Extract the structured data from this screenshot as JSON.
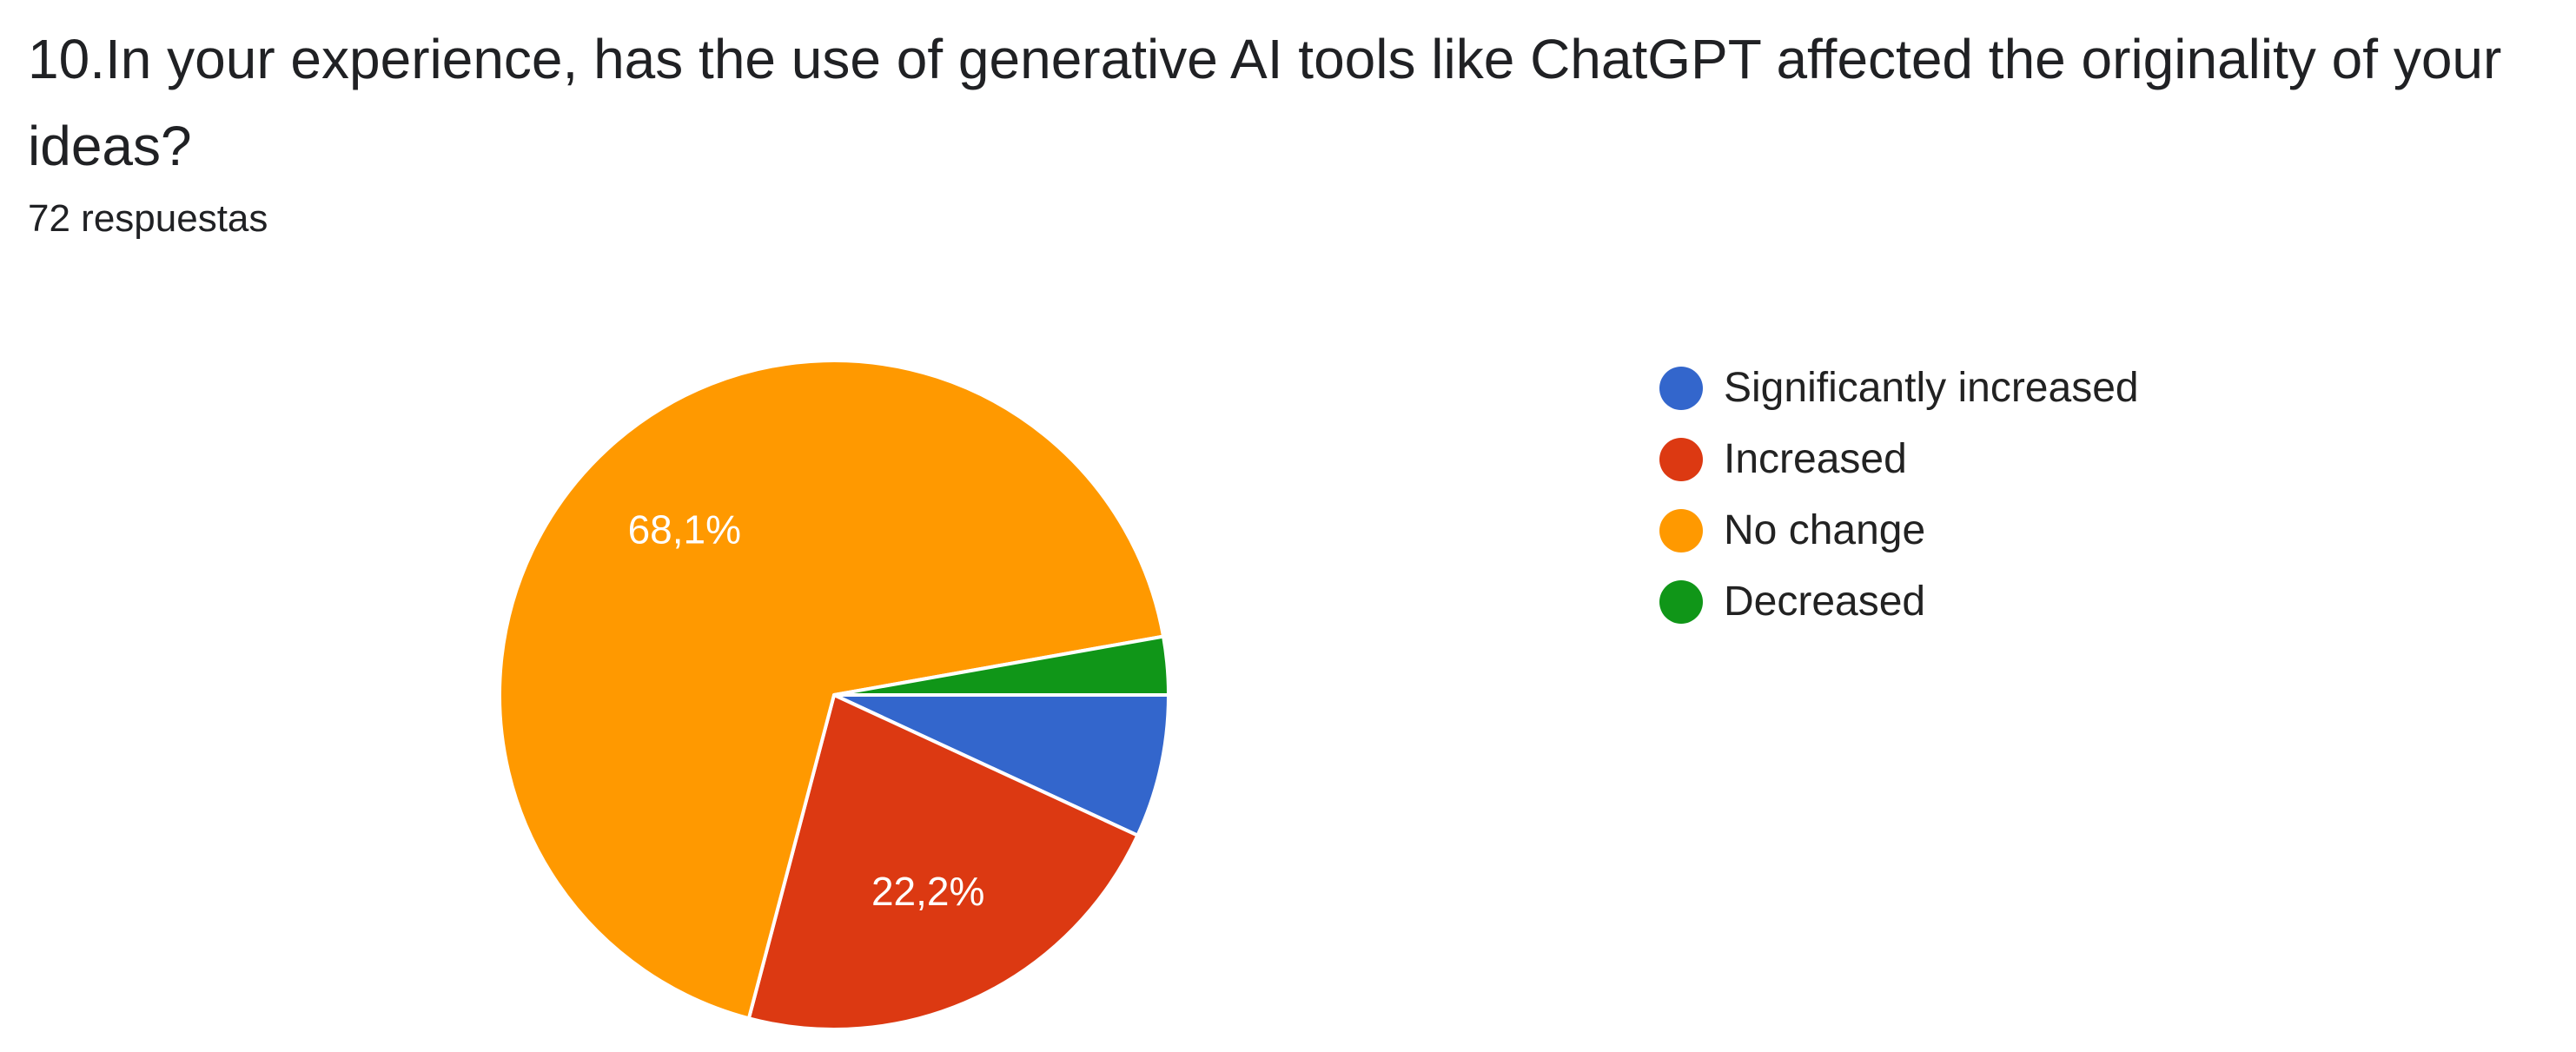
{
  "question": {
    "title": "10.In your experience, has the use of generative AI tools like ChatGPT affected the originality of your ideas?",
    "responses": "72 respuestas"
  },
  "chart_data": {
    "type": "pie",
    "title": "",
    "categories": [
      "Significantly increased",
      "Increased",
      "No change",
      "Decreased"
    ],
    "values": [
      6.9,
      22.2,
      68.1,
      2.8
    ],
    "colors": [
      "#3366cc",
      "#dc3912",
      "#ff9900",
      "#109618"
    ],
    "data_labels": {
      "Increased": "22,2%",
      "No change": "68,1%"
    },
    "label_color": "#ffffff",
    "legend": "right",
    "start": "3 o'clock",
    "direction": "clockwise"
  }
}
